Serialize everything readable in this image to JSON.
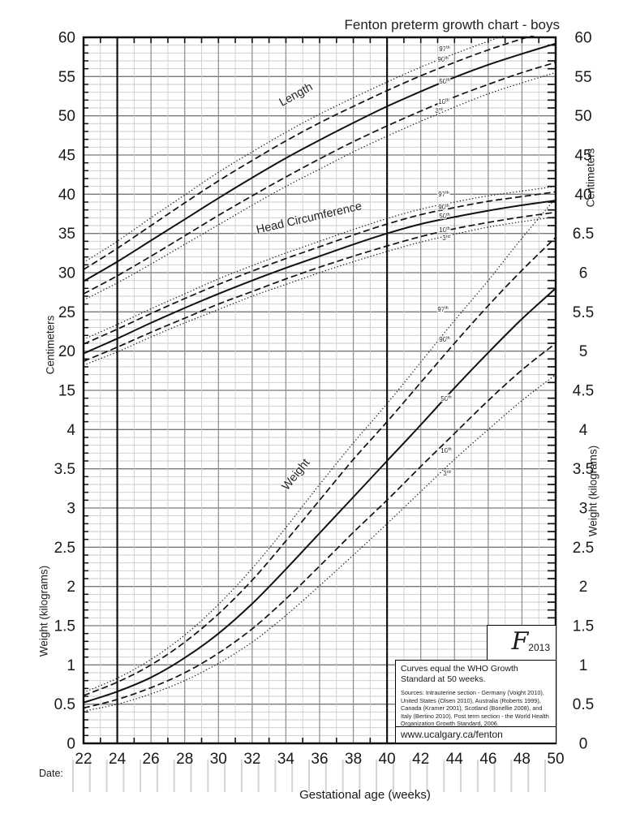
{
  "page": {
    "title": "Fenton preterm growth chart - boys"
  },
  "axes": {
    "left_cm_label": "Centimeters",
    "left_kg_label": "Weight (kilograms)",
    "right_cm_label": "Centimeters",
    "right_kg_label": "Weight (kilograms)"
  },
  "footer": {
    "date_label": "Date:",
    "x_axis_label": "Gestational age (weeks)"
  },
  "info_box": {
    "statement": "Curves equal the WHO Growth Standard at 50 weeks.",
    "sources": "Sources: Intrauterine section - Germany (Voight 2010), United States (Olsen 2010), Australia (Roberts 1999), Canada (Kramer 2001), Scotland (Bonellie 2008), and Italy (Bertino 2010). Post term section - the World Health Organization Growth Standard, 2006.",
    "url": "www.ucalgary.ca/fenton"
  },
  "logo": {
    "letter": "F",
    "year": "2013"
  },
  "chart_data": {
    "type": "line",
    "title": "Fenton preterm growth chart - boys",
    "xlabel": "Gestational age (weeks)",
    "x_range": [
      22,
      50
    ],
    "x_major_tick_step": 2,
    "x_minor_tick_step": 1,
    "emphasized_x_lines": [
      24,
      40
    ],
    "x_tick_labels": [
      22,
      24,
      26,
      28,
      30,
      32,
      34,
      36,
      38,
      40,
      42,
      44,
      46,
      48,
      50
    ],
    "left_axis": {
      "centimeters_ticks": [
        60,
        55,
        50,
        45,
        40,
        35,
        30,
        25,
        20,
        15
      ],
      "kilograms_ticks": [
        4,
        3.5,
        3,
        2.5,
        2,
        1.5,
        1,
        0.5,
        0
      ]
    },
    "right_axis": {
      "centimeters_ticks": [
        60,
        55,
        50,
        45,
        40
      ],
      "kilograms_ticks": [
        6.5,
        6,
        5.5,
        5,
        4.5,
        4,
        3.5,
        3,
        2.5,
        2,
        1.5,
        1,
        0.5,
        0
      ]
    },
    "grid": {
      "minor_step_cm": 1,
      "major_step_cm": 5,
      "minor_step_kg": 0.1,
      "major_step_kg": 0.5
    },
    "weeks": [
      22,
      24,
      26,
      28,
      30,
      32,
      34,
      36,
      38,
      40,
      42,
      44,
      46,
      48,
      50
    ],
    "curve_groups": [
      {
        "name": "Length",
        "unit": "cm",
        "series": [
          {
            "percentile": "97th",
            "style": "dotted",
            "values": [
              31.3,
              34.0,
              37.0,
              39.9,
              42.8,
              45.4,
              47.9,
              50.2,
              52.3,
              54.3,
              56.2,
              57.9,
              59.5,
              61.0,
              62.3
            ]
          },
          {
            "percentile": "90th",
            "style": "dashed",
            "values": [
              30.4,
              33.1,
              36.0,
              38.9,
              41.7,
              44.3,
              46.8,
              49.1,
              51.2,
              53.2,
              55.1,
              56.8,
              58.4,
              59.8,
              61.1
            ]
          },
          {
            "percentile": "50th",
            "style": "solid",
            "values": [
              28.9,
              31.4,
              34.1,
              36.8,
              39.5,
              42.1,
              44.6,
              46.9,
              49.1,
              51.2,
              53.1,
              54.9,
              56.5,
              57.9,
              59.2
            ]
          },
          {
            "percentile": "10th",
            "style": "dashed",
            "values": [
              27.3,
              29.6,
              32.1,
              34.7,
              37.3,
              39.8,
              42.2,
              44.5,
              46.7,
              48.7,
              50.6,
              52.4,
              54.0,
              55.5,
              56.8
            ]
          },
          {
            "percentile": "3rd",
            "style": "dotted",
            "values": [
              26.5,
              28.7,
              31.1,
              33.6,
              36.1,
              38.6,
              41.0,
              43.2,
              45.4,
              47.4,
              49.3,
              51.1,
              52.8,
              54.2,
              55.5
            ]
          }
        ]
      },
      {
        "name": "Head Circumference",
        "unit": "cm",
        "series": [
          {
            "percentile": "97th",
            "style": "dotted",
            "values": [
              21.5,
              23.4,
              25.4,
              27.3,
              29.2,
              30.9,
              32.5,
              34.0,
              35.5,
              36.9,
              38.1,
              39.0,
              39.8,
              40.4,
              41.0
            ]
          },
          {
            "percentile": "90th",
            "style": "dashed",
            "values": [
              20.9,
              22.8,
              24.8,
              26.7,
              28.5,
              30.2,
              31.8,
              33.3,
              34.8,
              36.2,
              37.4,
              38.3,
              39.1,
              39.7,
              40.3
            ]
          },
          {
            "percentile": "50th",
            "style": "solid",
            "values": [
              19.7,
              21.6,
              23.6,
              25.5,
              27.3,
              29.0,
              30.6,
              32.1,
              33.6,
              35.0,
              36.2,
              37.1,
              37.9,
              38.6,
              39.2
            ]
          },
          {
            "percentile": "10th",
            "style": "dashed",
            "values": [
              18.7,
              20.5,
              22.4,
              24.2,
              26.0,
              27.6,
              29.2,
              30.7,
              32.1,
              33.4,
              34.6,
              35.6,
              36.4,
              37.1,
              37.7
            ]
          },
          {
            "percentile": "3rd",
            "style": "dotted",
            "values": [
              18.2,
              19.9,
              21.8,
              23.6,
              25.3,
              27.0,
              28.5,
              30.0,
              31.4,
              32.7,
              33.9,
              34.9,
              35.8,
              36.5,
              37.1
            ]
          }
        ]
      },
      {
        "name": "Weight",
        "unit": "kg",
        "series": [
          {
            "percentile": "97th",
            "style": "dotted",
            "values": [
              0.65,
              0.83,
              1.07,
              1.38,
              1.77,
              2.23,
              2.75,
              3.3,
              3.83,
              4.33,
              4.86,
              5.39,
              5.9,
              6.44,
              6.95
            ]
          },
          {
            "percentile": "90th",
            "style": "dashed",
            "values": [
              0.61,
              0.78,
              1.0,
              1.29,
              1.65,
              2.08,
              2.58,
              3.1,
              3.62,
              4.1,
              4.6,
              5.1,
              5.58,
              6.03,
              6.45
            ]
          },
          {
            "percentile": "50th",
            "style": "solid",
            "values": [
              0.52,
              0.66,
              0.84,
              1.09,
              1.4,
              1.78,
              2.22,
              2.68,
              3.14,
              3.6,
              4.06,
              4.53,
              4.98,
              5.41,
              5.8
            ]
          },
          {
            "percentile": "10th",
            "style": "dashed",
            "values": [
              0.45,
              0.56,
              0.71,
              0.9,
              1.15,
              1.46,
              1.84,
              2.26,
              2.69,
              3.1,
              3.53,
              3.95,
              4.37,
              4.76,
              5.1
            ]
          },
          {
            "percentile": "3rd",
            "style": "dotted",
            "values": [
              0.41,
              0.5,
              0.63,
              0.8,
              1.02,
              1.29,
              1.63,
              2.01,
              2.4,
              2.8,
              3.21,
              3.62,
              4.0,
              4.37,
              4.7
            ]
          }
        ]
      }
    ],
    "percentile_annotations": {
      "length": [
        {
          "label": "97",
          "sup": "th",
          "x": 548,
          "y": 63
        },
        {
          "label": "90",
          "sup": "th",
          "x": 546,
          "y": 76
        },
        {
          "label": "50",
          "sup": "th",
          "x": 548,
          "y": 103
        },
        {
          "label": "10",
          "sup": "th",
          "x": 547,
          "y": 128
        },
        {
          "label": "3",
          "sup": "rd",
          "x": 541,
          "y": 139
        }
      ],
      "head": [
        {
          "label": "97",
          "sup": "th",
          "x": 547,
          "y": 242
        },
        {
          "label": "90",
          "sup": "th",
          "x": 547,
          "y": 258
        },
        {
          "label": "50",
          "sup": "th",
          "x": 548,
          "y": 269
        },
        {
          "label": "10",
          "sup": "th",
          "x": 548,
          "y": 286
        },
        {
          "label": "3",
          "sup": "rd",
          "x": 550,
          "y": 296
        }
      ],
      "weight": [
        {
          "label": "97",
          "sup": "th",
          "x": 546,
          "y": 384
        },
        {
          "label": "90",
          "sup": "th",
          "x": 548,
          "y": 421
        },
        {
          "label": "50",
          "sup": "th",
          "x": 550,
          "y": 494
        },
        {
          "label": "10",
          "sup": "th",
          "x": 550,
          "y": 558
        },
        {
          "label": "3",
          "sup": "rd",
          "x": 551,
          "y": 586
        }
      ]
    }
  }
}
